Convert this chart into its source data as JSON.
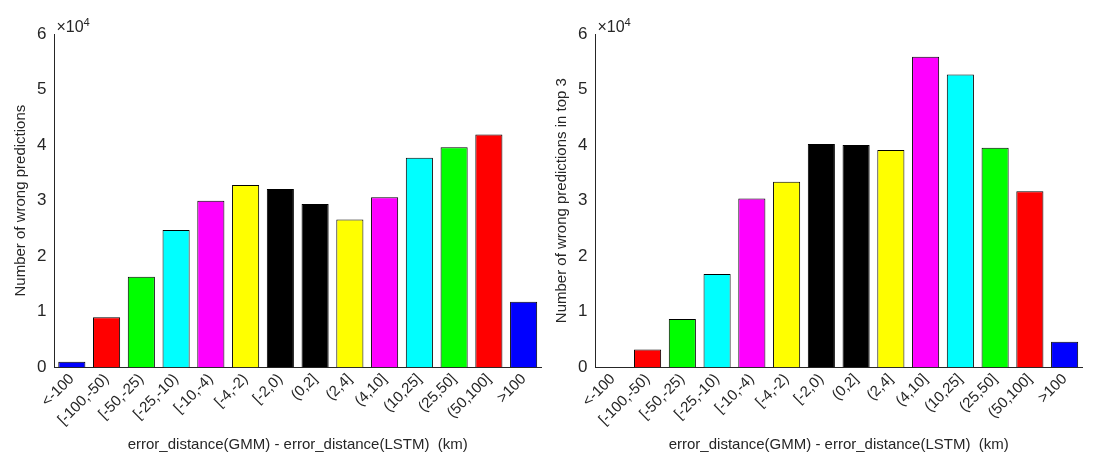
{
  "chart_data": [
    {
      "type": "bar",
      "categories": [
        "<-100",
        "[-100,-50)",
        "[-50,-25)",
        "[-25,-10)",
        "[-10,-4)",
        "[-4,-2)",
        "[-2,0)",
        "(0,2]",
        "(2,4]",
        "(4,10]",
        "(10,25]",
        "(25,50]",
        "(50,100]",
        ">100"
      ],
      "values": [
        0.1,
        0.9,
        1.63,
        2.47,
        3.0,
        3.28,
        3.21,
        2.94,
        2.66,
        3.06,
        3.77,
        3.96,
        4.19,
        1.18
      ],
      "colors": [
        "#0000ff",
        "#ff0000",
        "#00ff00",
        "#00ffff",
        "#ff00ff",
        "#ffff00",
        "#000000",
        "#000000",
        "#ffff00",
        "#ff00ff",
        "#00ffff",
        "#00ff00",
        "#ff0000",
        "#0000ff"
      ],
      "ylim": [
        0,
        6
      ],
      "yticks": [
        0,
        1,
        2,
        3,
        4,
        5,
        6
      ],
      "grid": false,
      "xlabel": "error_distance(GMM) - error_distance(LSTM)  (km)",
      "ylabel": "Number of wrong predictions",
      "annotations": [
        "×10$^{4}$"
      ]
    },
    {
      "type": "bar",
      "categories": [
        "<-100",
        "[-100,-50)",
        "[-50,-25)",
        "[-25,-10)",
        "[-10,-4)",
        "[-4,-2)",
        "[-2,0)",
        "(0,2]",
        "(2,4]",
        "(4,10]",
        "(10,25]",
        "(25,50]",
        "(50,100]",
        ">100"
      ],
      "values": [
        null,
        0.32,
        0.87,
        1.68,
        3.04,
        3.34,
        4.02,
        4.0,
        3.91,
        5.59,
        5.27,
        3.95,
        3.17,
        0.46
      ],
      "colors": [
        "#0000ff",
        "#ff0000",
        "#00ff00",
        "#00ffff",
        "#ff00ff",
        "#ffff00",
        "#000000",
        "#000000",
        "#ffff00",
        "#ff00ff",
        "#00ffff",
        "#00ff00",
        "#ff0000",
        "#0000ff"
      ],
      "ylim": [
        0,
        6
      ],
      "yticks": [
        0,
        1,
        2,
        3,
        4,
        5,
        6
      ],
      "grid": false,
      "xlabel": "error_distance(GMM) - error_distance(LSTM)  (km)",
      "ylabel": "Number of wrong predictions in top 3",
      "annotations": [
        "×10$^{4}$"
      ]
    }
  ]
}
